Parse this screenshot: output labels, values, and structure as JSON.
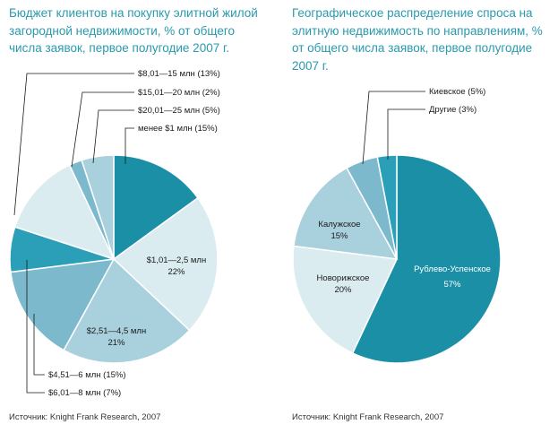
{
  "chart_data": [
    {
      "type": "pie",
      "title": "Бюджет клиентов на покупку элитной жилой загородной недвижимости, % от общего числа заявок, первое полугодие 2007 г.",
      "slices": [
        {
          "label": "менее $1 млн (15%)",
          "value": 15,
          "color": "#1a8fa5"
        },
        {
          "label": "$1,01—2,5 млн",
          "pct": "22%",
          "value": 22,
          "color": "#dbecf1"
        },
        {
          "label": "$2,51—4,5 млн",
          "pct": "21%",
          "value": 21,
          "color": "#a9d0dd"
        },
        {
          "label": "$4,51—6 млн (15%)",
          "value": 15,
          "color": "#7db9cd"
        },
        {
          "label": "$6,01—8 млн (7%)",
          "value": 7,
          "color": "#2c9fb8"
        },
        {
          "label": "$8,01—15 млн (13%)",
          "value": 13,
          "color": "#dbecf1"
        },
        {
          "label": "$15,01—20 млн (2%)",
          "value": 2,
          "color": "#7db9cd"
        },
        {
          "label": "$20,01—25 млн (5%)",
          "value": 5,
          "color": "#a9d0dd"
        }
      ]
    },
    {
      "type": "pie",
      "title": "Географическое распределение спроса на элитную недвижимость по направлениям, % от общего числа заявок, первое полугодие 2007 г.",
      "slices": [
        {
          "label": "Рублево-Успенское",
          "pct": "57%",
          "value": 57,
          "color": "#1a8fa5"
        },
        {
          "label": "Новорижское",
          "pct": "20%",
          "value": 20,
          "color": "#dbecf1"
        },
        {
          "label": "Калужское",
          "pct": "15%",
          "value": 15,
          "color": "#a9d0dd"
        },
        {
          "label": "Киевское (5%)",
          "value": 5,
          "color": "#7db9cd"
        },
        {
          "label": "Другие (3%)",
          "value": 3,
          "color": "#2c9fb8"
        }
      ]
    }
  ],
  "source1": "Источник: Knight Frank Research, 2007",
  "source2": "Источник: Knight Frank Research, 2007"
}
